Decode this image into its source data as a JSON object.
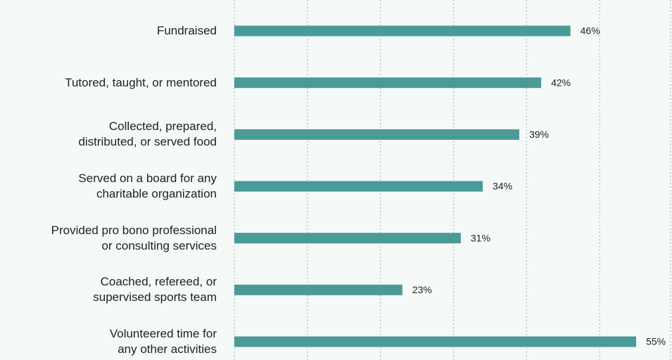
{
  "chart_data": {
    "type": "hbar",
    "categories": [
      "Fundraised",
      "Tutored, taught, or mentored",
      "Collected, prepared,\ndistributed, or served food",
      "Served on a board for any\ncharitable organization",
      "Provided pro bono professional\nor consulting services",
      "Coached, refereed, or\nsupervised sports team",
      "Volunteered time for\nany other activities"
    ],
    "values": [
      46,
      42,
      39,
      34,
      31,
      23,
      55
    ],
    "value_labels": [
      "46%",
      "42%",
      "39%",
      "34%",
      "31%",
      "23%",
      "55%"
    ],
    "color": "#4a9a98",
    "xlim": [
      0,
      60
    ],
    "xticks": [
      0,
      10,
      20,
      30,
      40,
      50,
      60
    ],
    "grid": true
  }
}
